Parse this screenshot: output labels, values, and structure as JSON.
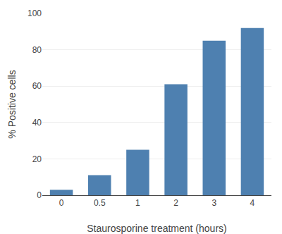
{
  "chart_data": {
    "type": "bar",
    "categories": [
      "0",
      "0.5",
      "1",
      "2",
      "3",
      "4"
    ],
    "values": [
      3,
      11,
      25,
      61,
      85,
      92
    ],
    "color": "#4e80b0",
    "xlabel": "Staurosporine treatment (hours)",
    "ylabel": "% Positive cells",
    "ylim": [
      0,
      100
    ],
    "yticks": [
      0,
      20,
      40,
      60,
      80,
      100
    ],
    "grid": true
  }
}
